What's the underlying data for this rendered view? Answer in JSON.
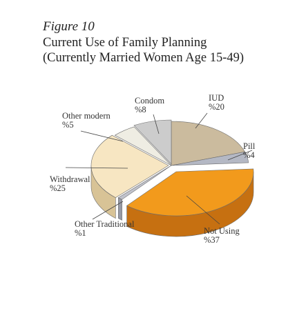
{
  "figure": {
    "number": "Figure 10",
    "title_line1": "Current Use of  Family Planning",
    "title_line2": "(Currently Married Women Age 15-49)"
  },
  "chart_data": {
    "type": "pie",
    "title": "Current Use of Family Planning (Currently Married Women Age 15-49)",
    "three_d": true,
    "slices": [
      {
        "key": "iud",
        "label": "IUD",
        "value_label": "%20",
        "value": 20,
        "color": "#cbbb9e",
        "dark": "#a39478"
      },
      {
        "key": "pill",
        "label": "Pill",
        "value_label": "%4",
        "value": 4,
        "color": "#b4b8c4",
        "dark": "#8e93a2"
      },
      {
        "key": "not-using",
        "label": "Not Using",
        "value_label": "%37",
        "value": 37,
        "color": "#f29a1c",
        "dark": "#c67011"
      },
      {
        "key": "other-traditional",
        "label": "Other Traditional",
        "value_label": "%1",
        "value": 1,
        "color": "#c0c2cb",
        "dark": "#979aa6"
      },
      {
        "key": "withdrawal",
        "label": "Withdrawal",
        "value_label": "%25",
        "value": 25,
        "color": "#f7e6c2",
        "dark": "#d8c396"
      },
      {
        "key": "other-modern",
        "label": "Other modern",
        "value_label": "%5",
        "value": 5,
        "color": "#efede3",
        "dark": "#c9c6b8"
      },
      {
        "key": "condom",
        "label": "Condom",
        "value_label": "%8",
        "value": 8,
        "color": "#cccccc",
        "dark": "#a3a3a3"
      }
    ]
  }
}
